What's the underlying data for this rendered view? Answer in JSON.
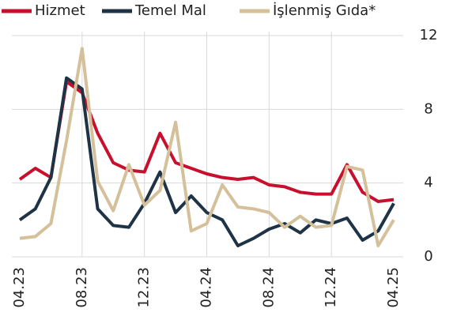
{
  "chart_data": {
    "type": "line",
    "categories": [
      "04.23",
      null,
      null,
      null,
      "08.23",
      null,
      null,
      null,
      "12.23",
      null,
      null,
      null,
      "04.24",
      null,
      null,
      null,
      "08.24",
      null,
      null,
      null,
      "12.24",
      null,
      null,
      null,
      "04.25"
    ],
    "series": [
      {
        "name": "Hizmet",
        "color": "#c8102e",
        "values": [
          4.2,
          4.8,
          4.3,
          9.5,
          8.9,
          6.7,
          5.1,
          4.7,
          4.6,
          6.7,
          5.1,
          4.8,
          4.5,
          4.3,
          4.2,
          4.3,
          3.9,
          3.8,
          3.5,
          3.4,
          3.4,
          5.0,
          3.5,
          3.0,
          3.1
        ]
      },
      {
        "name": "Temel Mal",
        "color": "#1f3347",
        "values": [
          2.0,
          2.6,
          4.3,
          9.7,
          9.1,
          2.6,
          1.7,
          1.6,
          2.9,
          4.6,
          2.4,
          3.3,
          2.4,
          2.0,
          0.6,
          1.0,
          1.5,
          1.8,
          1.3,
          2.0,
          1.8,
          2.1,
          0.9,
          1.4,
          2.9
        ]
      },
      {
        "name": "İşlenmiş Gıda*",
        "color": "#d4c09a",
        "values": [
          1.0,
          1.1,
          1.8,
          6.3,
          11.3,
          4.1,
          2.5,
          5.0,
          2.8,
          3.6,
          7.3,
          1.4,
          1.8,
          3.9,
          2.7,
          2.6,
          2.4,
          1.6,
          2.2,
          1.6,
          1.7,
          4.9,
          4.7,
          0.6,
          2.0
        ]
      }
    ],
    "ylim": [
      0,
      12
    ],
    "yticks": [
      0,
      4,
      8,
      12
    ],
    "grid": true,
    "legend": "top"
  }
}
